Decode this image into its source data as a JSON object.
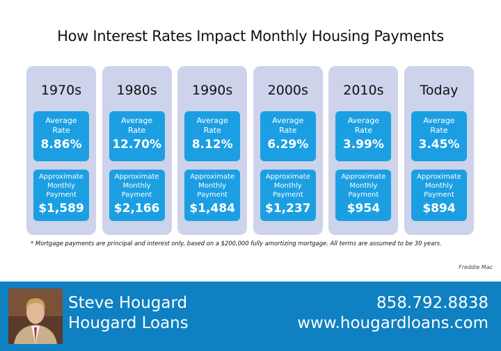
{
  "title": "How Interest Rates Impact Monthly Housing Payments",
  "columns": [
    {
      "period": "1970s",
      "rate_label": "Average Rate",
      "rate": "8.86%",
      "payment_label": "Approximate Monthly Payment",
      "payment": "$1,589"
    },
    {
      "period": "1980s",
      "rate_label": "Average Rate",
      "rate": "12.70%",
      "payment_label": "Approximate Monthly Payment",
      "payment": "$2,166"
    },
    {
      "period": "1990s",
      "rate_label": "Average Rate",
      "rate": "8.12%",
      "payment_label": "Approximate Monthly Payment",
      "payment": "$1,484"
    },
    {
      "period": "2000s",
      "rate_label": "Average Rate",
      "rate": "6.29%",
      "payment_label": "Approximate Monthly Payment",
      "payment": "$1,237"
    },
    {
      "period": "2010s",
      "rate_label": "Average Rate",
      "rate": "3.99%",
      "payment_label": "Approximate Monthly Payment",
      "payment": "$954"
    },
    {
      "period": "Today",
      "rate_label": "Average Rate",
      "rate": "3.45%",
      "payment_label": "Approximate Monthly Payment",
      "payment": "$894"
    }
  ],
  "footnote": "* Mortgage payments are principal and interest only, based on a $200,000 fully amortizing mortgage. All terms are assumed to be 30 years.",
  "source": "Freddie Mac",
  "footer": {
    "name": "Steve Hougard",
    "company": "Hougard Loans",
    "phone": "858.792.8838",
    "website": "www.hougardloans.com"
  }
}
